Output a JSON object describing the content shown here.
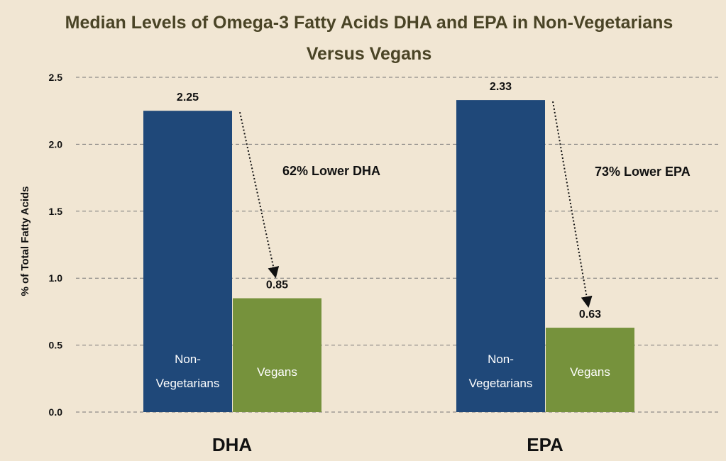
{
  "chart_data": {
    "type": "bar",
    "title": "Median Levels of Omega-3 Fatty Acids DHA and EPA in Non-Vegetarians",
    "title_line2": "Versus Vegans",
    "ylabel": "% of Total Fatty Acids",
    "xlabel": "",
    "ylim": [
      0,
      2.5
    ],
    "yticks": [
      "0.0",
      "0.5",
      "1.0",
      "1.5",
      "2.0",
      "2.5"
    ],
    "grid": true,
    "categories": [
      "DHA",
      "EPA"
    ],
    "series": [
      {
        "name": "Non-Vegetarians",
        "label_line1": "Non-",
        "label_line2": "Vegetarians",
        "values": [
          2.25,
          2.33
        ],
        "labels": [
          "2.25",
          "2.33"
        ],
        "color": "#1f4879"
      },
      {
        "name": "Vegans",
        "values": [
          0.85,
          0.63
        ],
        "labels": [
          "0.85",
          "0.63"
        ],
        "color": "#76923c"
      }
    ],
    "annotations": [
      "62% Lower DHA",
      "73% Lower EPA"
    ]
  }
}
